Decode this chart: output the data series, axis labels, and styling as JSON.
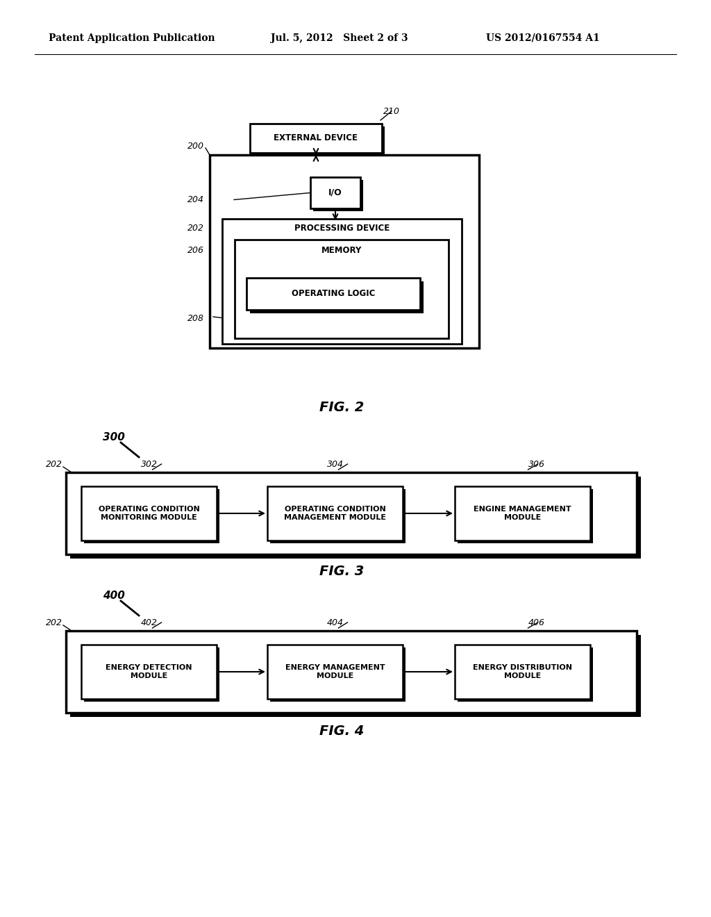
{
  "bg_color": "#ffffff",
  "header_left": "Patent Application Publication",
  "header_mid": "Jul. 5, 2012   Sheet 2 of 3",
  "header_right": "US 2012/0167554 A1",
  "fig2_label": "FIG. 2",
  "fig3_label": "FIG. 3",
  "fig4_label": "FIG. 4",
  "ref_210": "210",
  "ref_200": "200",
  "ref_204": "204",
  "ref_202_fig2": "202",
  "ref_206": "206",
  "ref_208": "208",
  "ref_300": "300",
  "ref_302": "302",
  "ref_304": "304",
  "ref_306": "306",
  "ref_202_fig3": "202",
  "ref_400": "400",
  "ref_402": "402",
  "ref_404": "404",
  "ref_406": "406",
  "ref_202_fig4": "202",
  "ext_device_label": "EXTERNAL DEVICE",
  "io_label": "I/O",
  "proc_device_label": "PROCESSING DEVICE",
  "memory_label": "MEMORY",
  "op_logic_label": "OPERATING LOGIC",
  "box1_302": "OPERATING CONDITION\nMONITORING MODULE",
  "box2_304": "OPERATING CONDITION\nMANAGEMENT MODULE",
  "box3_306": "ENGINE MANAGEMENT\nMODULE",
  "box1_402": "ENERGY DETECTION\nMODULE",
  "box2_404": "ENERGY MANAGEMENT\nMODULE",
  "box3_406": "ENERGY DISTRIBUTION\nMODULE"
}
